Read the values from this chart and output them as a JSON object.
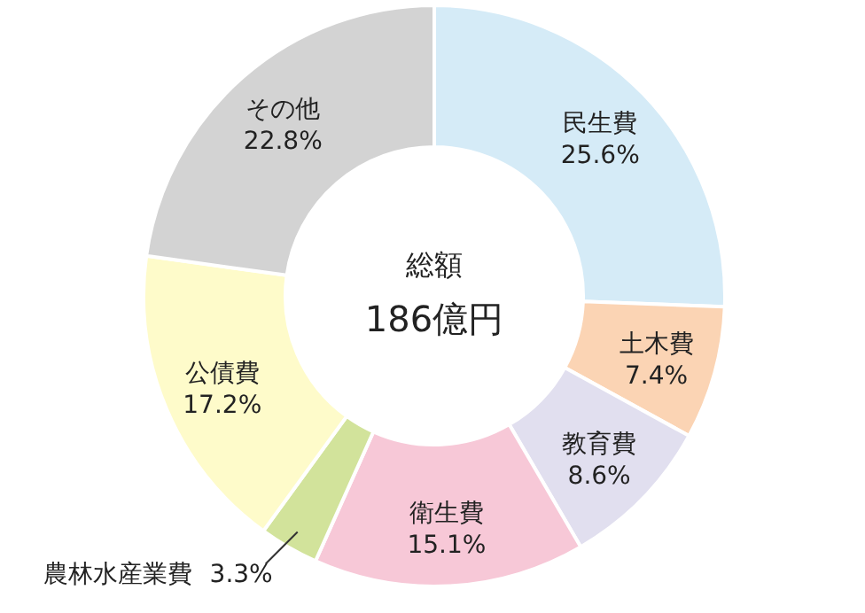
{
  "chart_data": {
    "type": "donut",
    "categories": [
      "民生費",
      "土木費",
      "教育費",
      "衛生費",
      "農林水産業費",
      "公債費",
      "その他"
    ],
    "values": [
      25.6,
      7.4,
      8.6,
      15.1,
      3.3,
      17.2,
      22.8
    ],
    "value_labels": [
      "25.6%",
      "7.4%",
      "8.6%",
      "15.1%",
      "3.3%",
      "17.2%",
      "22.8%"
    ],
    "colors": [
      "#d5ebf7",
      "#fbd4b4",
      "#e1dfef",
      "#f7c8d7",
      "#d2e39b",
      "#fefbca",
      "#d3d3d3"
    ],
    "annotations": [
      "総額",
      "186億円"
    ],
    "legend": false
  }
}
